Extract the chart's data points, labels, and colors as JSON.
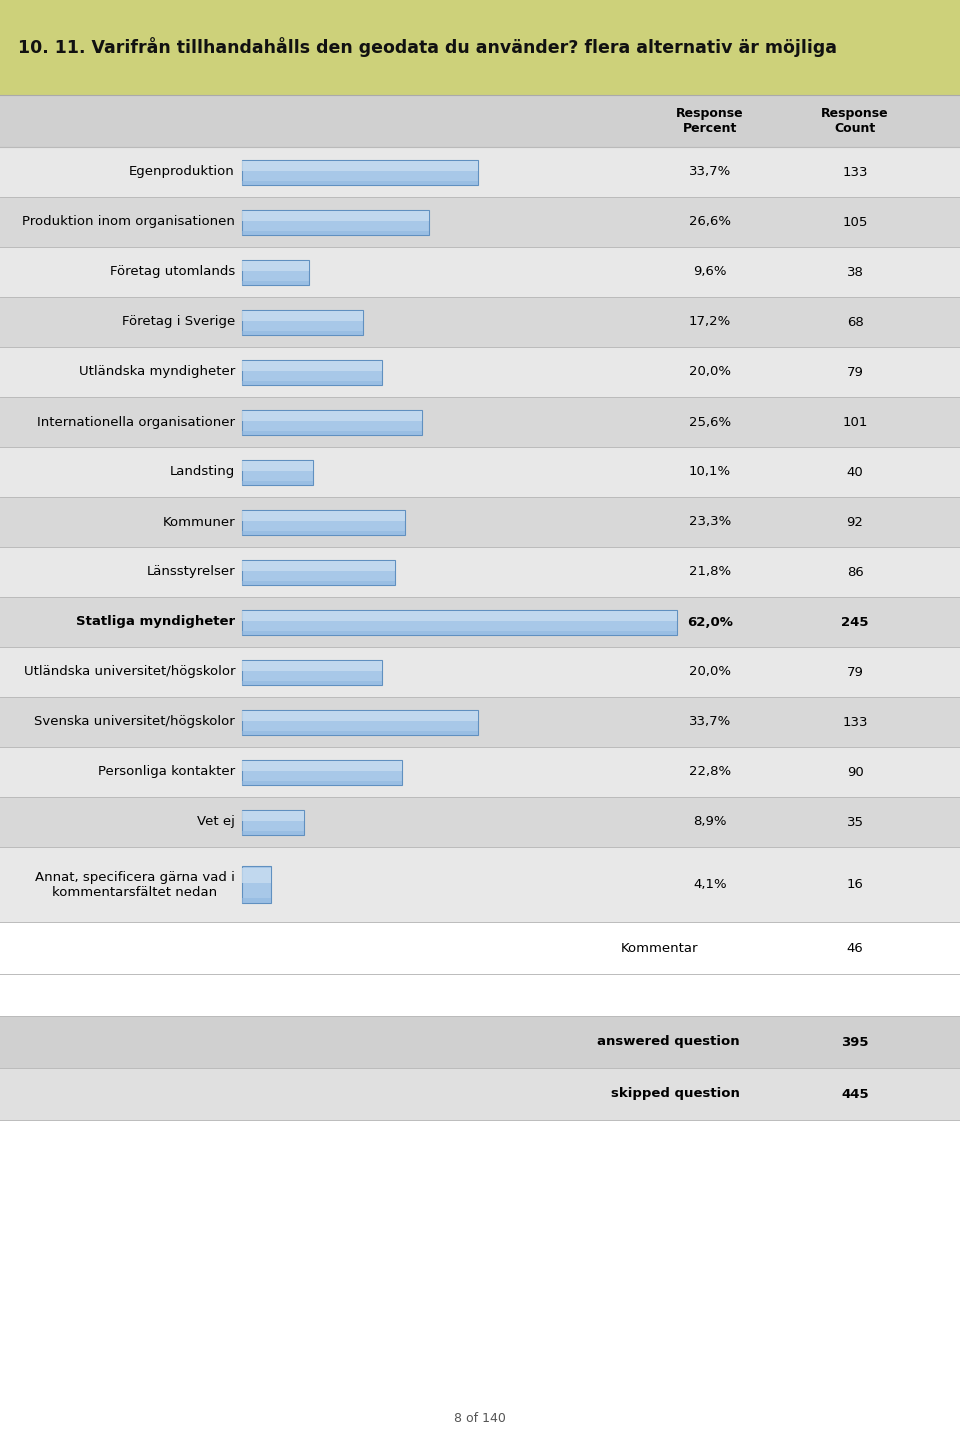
{
  "title": "10. 11. Varifrån tillhandahålls den geodata du använder? flera alternativ är möjliga",
  "title_bg": "#cdd17a",
  "rows": [
    {
      "label": "Egenproduktion",
      "percent": 33.7,
      "percent_str": "33,7%",
      "count": "133",
      "bold": false,
      "multiline": false
    },
    {
      "label": "Produktion inom organisationen",
      "percent": 26.6,
      "percent_str": "26,6%",
      "count": "105",
      "bold": false,
      "multiline": false
    },
    {
      "label": "Företag utomlands",
      "percent": 9.6,
      "percent_str": "9,6%",
      "count": "38",
      "bold": false,
      "multiline": false
    },
    {
      "label": "Företag i Sverige",
      "percent": 17.2,
      "percent_str": "17,2%",
      "count": "68",
      "bold": false,
      "multiline": false
    },
    {
      "label": "Utländska myndigheter",
      "percent": 20.0,
      "percent_str": "20,0%",
      "count": "79",
      "bold": false,
      "multiline": false
    },
    {
      "label": "Internationella organisationer",
      "percent": 25.6,
      "percent_str": "25,6%",
      "count": "101",
      "bold": false,
      "multiline": false
    },
    {
      "label": "Landsting",
      "percent": 10.1,
      "percent_str": "10,1%",
      "count": "40",
      "bold": false,
      "multiline": false
    },
    {
      "label": "Kommuner",
      "percent": 23.3,
      "percent_str": "23,3%",
      "count": "92",
      "bold": false,
      "multiline": false
    },
    {
      "label": "Länsstyrelser",
      "percent": 21.8,
      "percent_str": "21,8%",
      "count": "86",
      "bold": false,
      "multiline": false
    },
    {
      "label": "Statliga myndigheter",
      "percent": 62.0,
      "percent_str": "62,0%",
      "count": "245",
      "bold": true,
      "multiline": false
    },
    {
      "label": "Utländska universitet/högskolor",
      "percent": 20.0,
      "percent_str": "20,0%",
      "count": "79",
      "bold": false,
      "multiline": false
    },
    {
      "label": "Svenska universitet/högskolor",
      "percent": 33.7,
      "percent_str": "33,7%",
      "count": "133",
      "bold": false,
      "multiline": false
    },
    {
      "label": "Personliga kontakter",
      "percent": 22.8,
      "percent_str": "22,8%",
      "count": "90",
      "bold": false,
      "multiline": false
    },
    {
      "label": "Vet ej",
      "percent": 8.9,
      "percent_str": "8,9%",
      "count": "35",
      "bold": false,
      "multiline": false
    },
    {
      "label": "Annat, specificera gärna vad i\nkommentarsfältet nedan",
      "percent": 4.1,
      "percent_str": "4,1%",
      "count": "16",
      "bold": false,
      "multiline": true
    }
  ],
  "kommentar_count": "46",
  "answered_question": "395",
  "skipped_question": "445",
  "max_percent": 62.0,
  "bar_fill_top": "#c8ddf0",
  "bar_fill_mid": "#a8c8e8",
  "bar_fill_bot": "#90b8e0",
  "bar_edge_color": "#6090c0",
  "row_bg_even": "#e8e8e8",
  "row_bg_odd": "#d8d8d8",
  "header_bg": "#d0d0d0",
  "footer_bg_ans": "#d0d0d0",
  "footer_bg_skip": "#e0e0e0",
  "footer_text": "8 of 140",
  "fig_width": 9.6,
  "fig_height": 14.43
}
